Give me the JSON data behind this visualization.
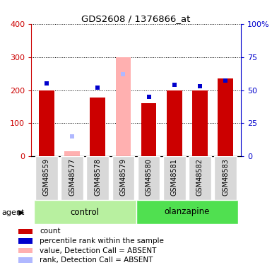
{
  "title": "GDS2608 / 1376866_at",
  "samples": [
    "GSM48559",
    "GSM48577",
    "GSM48578",
    "GSM48579",
    "GSM48580",
    "GSM48581",
    "GSM48582",
    "GSM48583"
  ],
  "count_values": [
    200,
    null,
    178,
    null,
    160,
    200,
    200,
    235
  ],
  "count_absent_values": [
    null,
    15,
    null,
    300,
    null,
    null,
    null,
    null
  ],
  "rank_values": [
    55,
    null,
    52,
    null,
    45,
    54,
    53,
    57
  ],
  "rank_absent_values": [
    null,
    15,
    null,
    62,
    null,
    null,
    null,
    null
  ],
  "absent_flags": [
    false,
    true,
    false,
    true,
    false,
    false,
    false,
    false
  ],
  "groups": [
    {
      "label": "control",
      "indices": [
        0,
        1,
        2,
        3
      ],
      "color": "#b8f0a0"
    },
    {
      "label": "olanzapine",
      "indices": [
        4,
        5,
        6,
        7
      ],
      "color": "#50e050"
    }
  ],
  "left_ylim": [
    0,
    400
  ],
  "left_yticks": [
    0,
    100,
    200,
    300,
    400
  ],
  "right_ylim": [
    0,
    100
  ],
  "right_yticks": [
    0,
    25,
    50,
    75,
    100
  ],
  "right_ytick_labels": [
    "0",
    "25",
    "50",
    "75",
    "100%"
  ],
  "left_yaxis_color": "#cc0000",
  "right_yaxis_color": "#0000cc",
  "bar_color_present": "#cc0000",
  "bar_color_absent": "#ffb0b0",
  "square_color_present": "#0000cc",
  "square_color_absent": "#b0b8ff",
  "bar_width": 0.6,
  "agent_label": "agent",
  "legend_items": [
    {
      "color": "#cc0000",
      "label": "count"
    },
    {
      "color": "#0000cc",
      "label": "percentile rank within the sample"
    },
    {
      "color": "#ffb0b0",
      "label": "value, Detection Call = ABSENT"
    },
    {
      "color": "#b0b8ff",
      "label": "rank, Detection Call = ABSENT"
    }
  ]
}
